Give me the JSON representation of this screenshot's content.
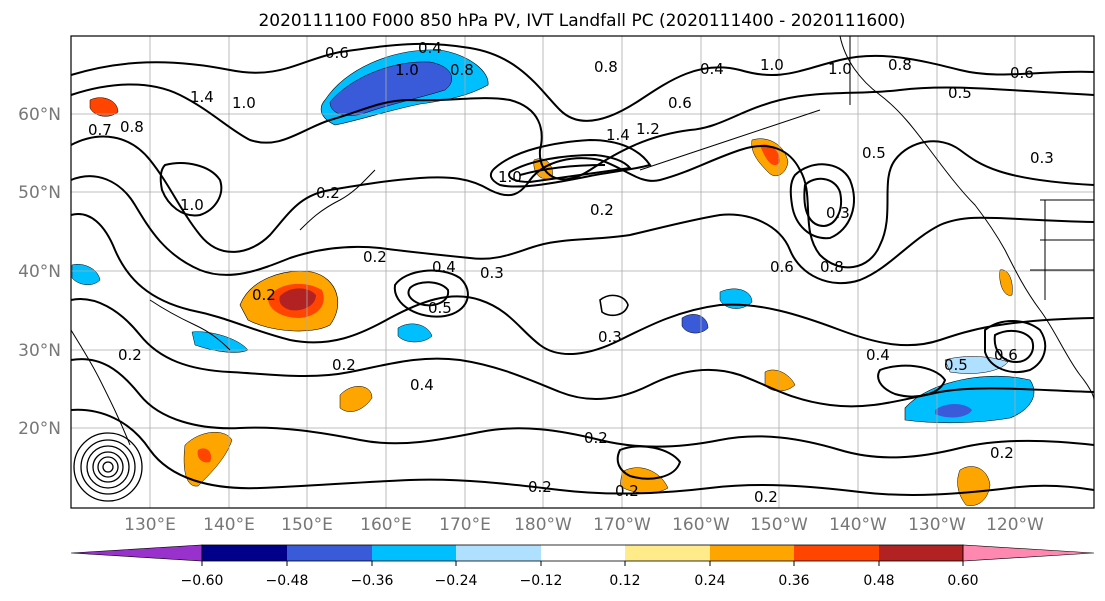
{
  "title": "2020111100 F000 850 hPa PV, IVT Landfall PC (2020111400 - 2020111600)",
  "lat_labels": [
    "60°N",
    "50°N",
    "40°N",
    "30°N",
    "20°N"
  ],
  "lon_labels": [
    "130°E",
    "140°E",
    "150°E",
    "160°E",
    "170°E",
    "180°W",
    "170°W",
    "160°W",
    "150°W",
    "140°W",
    "130°W",
    "120°W"
  ],
  "colorbar": {
    "ticks": [
      "−0.60",
      "−0.48",
      "−0.36",
      "−0.24",
      "−0.12",
      "0.12",
      "0.24",
      "0.36",
      "0.48",
      "0.60"
    ],
    "colors": [
      "#9932cc",
      "#00008b",
      "#3a5bd9",
      "#00bfff",
      "#b0e0ff",
      "#ffffff",
      "#ffeb8a",
      "#ffa500",
      "#ff4500",
      "#b22222",
      "#ff88b0"
    ]
  },
  "contour_labels": [
    {
      "text": "0.6"
    },
    {
      "text": "0.4"
    },
    {
      "text": "1.0"
    },
    {
      "text": "0.8"
    },
    {
      "text": "1.4"
    },
    {
      "text": "1.0"
    },
    {
      "text": "0.7"
    },
    {
      "text": "0.8"
    },
    {
      "text": "0.4"
    },
    {
      "text": "0.8"
    },
    {
      "text": "0.6"
    },
    {
      "text": "1.0"
    },
    {
      "text": "0.8"
    },
    {
      "text": "0.6"
    },
    {
      "text": "1.0"
    },
    {
      "text": "0.5"
    },
    {
      "text": "1.4"
    },
    {
      "text": "1.2"
    },
    {
      "text": "1.0"
    },
    {
      "text": "0.2"
    },
    {
      "text": "0.5"
    },
    {
      "text": "0.3"
    },
    {
      "text": "1.0"
    },
    {
      "text": "0.2"
    },
    {
      "text": "0.2"
    },
    {
      "text": "0.4"
    },
    {
      "text": "0.3"
    },
    {
      "text": "0.5"
    },
    {
      "text": "0.3"
    },
    {
      "text": "0.3"
    },
    {
      "text": "0.2"
    },
    {
      "text": "0.2"
    },
    {
      "text": "0.6"
    },
    {
      "text": "0.8"
    },
    {
      "text": "0.4"
    },
    {
      "text": "0.5"
    },
    {
      "text": "0.6"
    },
    {
      "text": "0.4"
    },
    {
      "text": "0.2"
    },
    {
      "text": "0.2"
    },
    {
      "text": "0.2"
    },
    {
      "text": "0.2"
    },
    {
      "text": "0.2"
    },
    {
      "text": "0.2"
    }
  ]
}
